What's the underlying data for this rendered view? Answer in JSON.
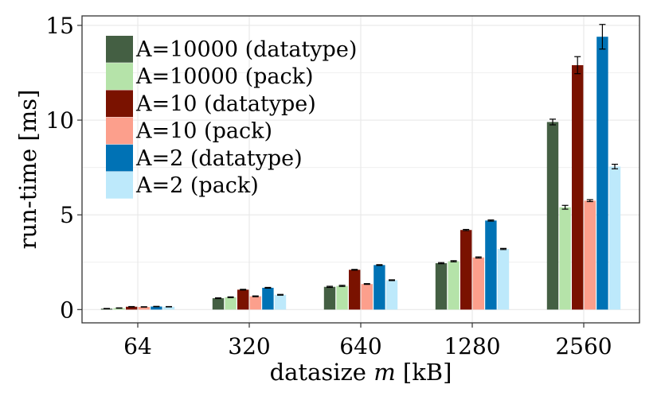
{
  "chart_data": {
    "type": "bar",
    "title": "",
    "xlabel_prefix": "datasize ",
    "xlabel_var": "m",
    "xlabel_suffix": " [kB]",
    "ylabel": "run-time [ms]",
    "ylim": [
      -0.7,
      15.5
    ],
    "yticks": [
      0,
      5,
      10,
      15
    ],
    "ytick_labels": [
      "0",
      "5",
      "10",
      "15"
    ],
    "categories": [
      "64",
      "320",
      "640",
      "1280",
      "2560"
    ],
    "legend_position": "top-left",
    "grid": true,
    "series": [
      {
        "name": "A=10000 (datatype)",
        "color": "#445f43",
        "values": [
          0.05,
          0.6,
          1.2,
          2.45,
          9.9
        ],
        "errors": [
          0.01,
          0.02,
          0.03,
          0.03,
          0.15
        ]
      },
      {
        "name": "A=10000 (pack)",
        "color": "#b5e3a9",
        "values": [
          0.08,
          0.65,
          1.25,
          2.55,
          5.4
        ],
        "errors": [
          0.01,
          0.02,
          0.03,
          0.03,
          0.1
        ]
      },
      {
        "name": "A=10 (datatype)",
        "color": "#7a1200",
        "values": [
          0.15,
          1.05,
          2.1,
          4.2,
          12.9
        ],
        "errors": [
          0.01,
          0.02,
          0.02,
          0.03,
          0.45
        ]
      },
      {
        "name": "A=10 (pack)",
        "color": "#fc9f8c",
        "values": [
          0.14,
          0.7,
          1.35,
          2.75,
          5.75
        ],
        "errors": [
          0.01,
          0.02,
          0.02,
          0.03,
          0.05
        ]
      },
      {
        "name": "A=2 (datatype)",
        "color": "#0072b5",
        "values": [
          0.16,
          1.15,
          2.35,
          4.7,
          14.4
        ],
        "errors": [
          0.01,
          0.02,
          0.02,
          0.03,
          0.65
        ]
      },
      {
        "name": "A=2 (pack)",
        "color": "#bde9fb",
        "values": [
          0.15,
          0.78,
          1.55,
          3.2,
          7.55
        ],
        "errors": [
          0.01,
          0.02,
          0.02,
          0.03,
          0.12
        ]
      }
    ]
  }
}
